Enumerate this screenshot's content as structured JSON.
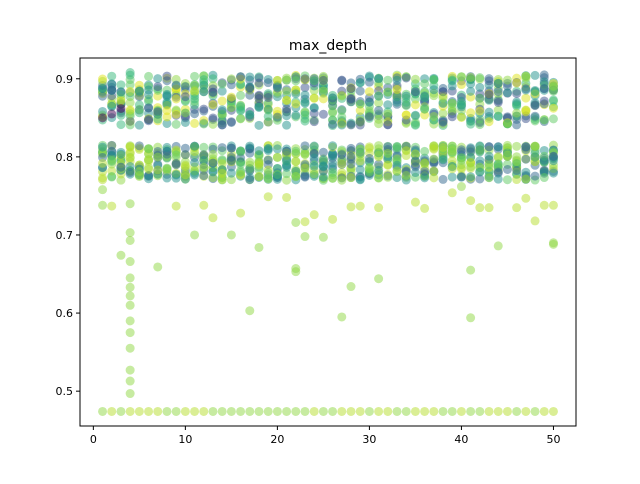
{
  "chart_data": {
    "type": "scatter",
    "title": "max_depth",
    "xlabel": "",
    "ylabel": "",
    "xlim": [
      -1.45,
      52.45
    ],
    "ylim": [
      0.4554,
      0.9266
    ],
    "x_ticks": [
      0,
      10,
      20,
      30,
      40,
      50
    ],
    "x_tick_labels": [
      "0",
      "10",
      "20",
      "30",
      "40",
      "50"
    ],
    "y_ticks": [
      0.5,
      0.6,
      0.7,
      0.8,
      0.9
    ],
    "y_tick_labels": [
      "0.5",
      "0.6",
      "0.7",
      "0.8",
      "0.9"
    ],
    "grid": false,
    "legend": "none",
    "marker": {
      "shape": "circle",
      "opacity": 0.5
    },
    "colors": {
      "dark_purple": "#440154",
      "indigo": "#3b528b",
      "blue": "#31688e",
      "teal": "#21918c",
      "sea_green": "#35b779",
      "green": "#5ec962",
      "lime": "#8fd744",
      "yellow_green": "#b5de2b",
      "yellow": "#dde318"
    },
    "bands": [
      {
        "name_hint": "top cluster",
        "x_from": 1,
        "x_to": 50,
        "y_min": 0.84,
        "y_max": 0.905,
        "colors": [
          "indigo",
          "blue",
          "teal",
          "sea_green",
          "green",
          "lime",
          "yellow"
        ]
      },
      {
        "name_hint": "middle cluster",
        "x_from": 1,
        "x_to": 50,
        "y_min": 0.77,
        "y_max": 0.815,
        "colors": [
          "lime",
          "yellow_green",
          "green",
          "teal",
          "blue"
        ]
      },
      {
        "name_hint": "bottom floor",
        "x_from": 1,
        "x_to": 50,
        "y_min": 0.474,
        "y_max": 0.474,
        "colors": [
          "lime",
          "yellow_green"
        ]
      }
    ],
    "points": [
      {
        "x": 4,
        "y": 0.908,
        "c": "sea_green"
      },
      {
        "x": 2,
        "y": 0.855,
        "c": "dark_purple"
      },
      {
        "x": 1,
        "y": 0.85,
        "c": "dark_purple"
      },
      {
        "x": 3,
        "y": 0.862,
        "c": "dark_purple"
      },
      {
        "x": 4,
        "y": 0.74,
        "c": "lime"
      },
      {
        "x": 4,
        "y": 0.703,
        "c": "lime"
      },
      {
        "x": 4,
        "y": 0.693,
        "c": "lime"
      },
      {
        "x": 4,
        "y": 0.666,
        "c": "lime"
      },
      {
        "x": 4,
        "y": 0.645,
        "c": "lime"
      },
      {
        "x": 4,
        "y": 0.633,
        "c": "lime"
      },
      {
        "x": 4,
        "y": 0.622,
        "c": "lime"
      },
      {
        "x": 4,
        "y": 0.61,
        "c": "lime"
      },
      {
        "x": 4,
        "y": 0.59,
        "c": "lime"
      },
      {
        "x": 4,
        "y": 0.575,
        "c": "lime"
      },
      {
        "x": 4,
        "y": 0.555,
        "c": "lime"
      },
      {
        "x": 4,
        "y": 0.527,
        "c": "lime"
      },
      {
        "x": 4,
        "y": 0.513,
        "c": "lime"
      },
      {
        "x": 4,
        "y": 0.497,
        "c": "lime"
      },
      {
        "x": 3,
        "y": 0.674,
        "c": "lime"
      },
      {
        "x": 1,
        "y": 0.738,
        "c": "lime"
      },
      {
        "x": 1,
        "y": 0.758,
        "c": "lime"
      },
      {
        "x": 2,
        "y": 0.737,
        "c": "yellow_green"
      },
      {
        "x": 7,
        "y": 0.659,
        "c": "lime"
      },
      {
        "x": 9,
        "y": 0.737,
        "c": "yellow_green"
      },
      {
        "x": 11,
        "y": 0.7,
        "c": "lime"
      },
      {
        "x": 12,
        "y": 0.738,
        "c": "yellow_green"
      },
      {
        "x": 13,
        "y": 0.722,
        "c": "yellow_green"
      },
      {
        "x": 15,
        "y": 0.7,
        "c": "lime"
      },
      {
        "x": 16,
        "y": 0.728,
        "c": "yellow_green"
      },
      {
        "x": 17,
        "y": 0.603,
        "c": "lime"
      },
      {
        "x": 18,
        "y": 0.684,
        "c": "lime"
      },
      {
        "x": 19,
        "y": 0.749,
        "c": "yellow_green"
      },
      {
        "x": 21,
        "y": 0.748,
        "c": "yellow_green"
      },
      {
        "x": 22,
        "y": 0.657,
        "c": "lime"
      },
      {
        "x": 22,
        "y": 0.653,
        "c": "lime"
      },
      {
        "x": 22,
        "y": 0.716,
        "c": "lime"
      },
      {
        "x": 23,
        "y": 0.698,
        "c": "lime"
      },
      {
        "x": 23,
        "y": 0.717,
        "c": "yellow_green"
      },
      {
        "x": 24,
        "y": 0.726,
        "c": "yellow_green"
      },
      {
        "x": 25,
        "y": 0.697,
        "c": "lime"
      },
      {
        "x": 26,
        "y": 0.72,
        "c": "yellow_green"
      },
      {
        "x": 27,
        "y": 0.595,
        "c": "lime"
      },
      {
        "x": 28,
        "y": 0.634,
        "c": "lime"
      },
      {
        "x": 28,
        "y": 0.736,
        "c": "yellow_green"
      },
      {
        "x": 29,
        "y": 0.737,
        "c": "yellow_green"
      },
      {
        "x": 31,
        "y": 0.644,
        "c": "lime"
      },
      {
        "x": 31,
        "y": 0.735,
        "c": "yellow_green"
      },
      {
        "x": 35,
        "y": 0.742,
        "c": "yellow_green"
      },
      {
        "x": 36,
        "y": 0.734,
        "c": "yellow_green"
      },
      {
        "x": 39,
        "y": 0.754,
        "c": "yellow_green"
      },
      {
        "x": 40,
        "y": 0.762,
        "c": "lime"
      },
      {
        "x": 41,
        "y": 0.655,
        "c": "lime"
      },
      {
        "x": 41,
        "y": 0.594,
        "c": "lime"
      },
      {
        "x": 41,
        "y": 0.744,
        "c": "yellow_green"
      },
      {
        "x": 42,
        "y": 0.735,
        "c": "yellow_green"
      },
      {
        "x": 43,
        "y": 0.735,
        "c": "yellow_green"
      },
      {
        "x": 44,
        "y": 0.686,
        "c": "lime"
      },
      {
        "x": 46,
        "y": 0.735,
        "c": "yellow_green"
      },
      {
        "x": 47,
        "y": 0.747,
        "c": "yellow_green"
      },
      {
        "x": 48,
        "y": 0.718,
        "c": "yellow_green"
      },
      {
        "x": 49,
        "y": 0.738,
        "c": "yellow_green"
      },
      {
        "x": 50,
        "y": 0.738,
        "c": "yellow_green"
      },
      {
        "x": 50,
        "y": 0.69,
        "c": "lime"
      },
      {
        "x": 50,
        "y": 0.688,
        "c": "lime"
      }
    ]
  }
}
